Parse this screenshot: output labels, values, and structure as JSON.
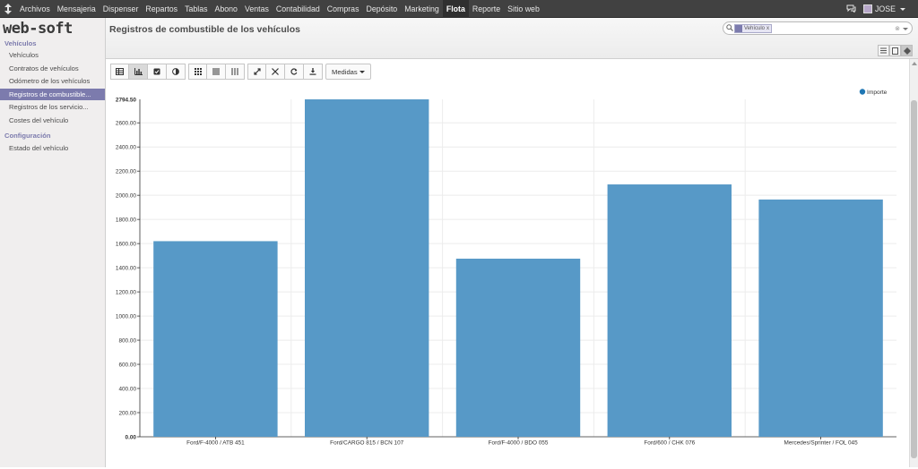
{
  "topbar": {
    "menu": [
      {
        "label": "Archivos",
        "active": false
      },
      {
        "label": "Mensajeria",
        "active": false
      },
      {
        "label": "Dispenser",
        "active": false
      },
      {
        "label": "Repartos",
        "active": false
      },
      {
        "label": "Tablas",
        "active": false
      },
      {
        "label": "Abono",
        "active": false
      },
      {
        "label": "Ventas",
        "active": false
      },
      {
        "label": "Contabilidad",
        "active": false
      },
      {
        "label": "Compras",
        "active": false
      },
      {
        "label": "Depósito",
        "active": false
      },
      {
        "label": "Marketing",
        "active": false
      },
      {
        "label": "Flota",
        "active": true
      },
      {
        "label": "Reporte",
        "active": false
      },
      {
        "label": "Sitio web",
        "active": false
      }
    ],
    "user": "JOSE"
  },
  "sidebar": {
    "brand": "web-soft",
    "section_vehicles": "Vehículos",
    "items": [
      {
        "label": "Vehículos",
        "active": false
      },
      {
        "label": "Contratos de vehículos",
        "active": false
      },
      {
        "label": "Odómetro de los vehículos",
        "active": false
      },
      {
        "label": "Registros de combustible...",
        "active": true
      },
      {
        "label": "Registros de los servicio...",
        "active": false
      },
      {
        "label": "Costes del vehículo",
        "active": false
      }
    ],
    "section_config": "Configuración",
    "config_items": [
      {
        "label": "Estado del vehículo",
        "active": false
      }
    ]
  },
  "header": {
    "title": "Registros de combustible de los vehículos",
    "search_facet": "Vehículo",
    "search_facet_remove": "x"
  },
  "toolbar": {
    "measures_label": "Medidas"
  },
  "colors": {
    "bar": "#5799c7",
    "accent": "#7c7bad",
    "topbar": "#414141"
  },
  "chart_data": {
    "type": "bar",
    "categories": [
      "Ford/F-4000 / ATB 451",
      "Ford/CARGO 815 / BCN 107",
      "Ford/F-4000 / BDO 055",
      "Ford/600 / CHK 076",
      "Mercedes/Sprinter / FOL 045"
    ],
    "series": [
      {
        "name": "Importe",
        "values": [
          1620,
          2794.5,
          1475,
          2090,
          1965
        ]
      }
    ],
    "yticks": [
      "0.00",
      "200.00",
      "400.00",
      "600.00",
      "800.00",
      "1000.00",
      "1200.00",
      "1400.00",
      "1600.00",
      "1800.00",
      "2000.00",
      "2200.00",
      "2400.00",
      "2600.00"
    ],
    "ymax_label": "2794.50",
    "ylim": [
      0,
      2794.5
    ],
    "legend_position": "top-right",
    "grid": true
  }
}
